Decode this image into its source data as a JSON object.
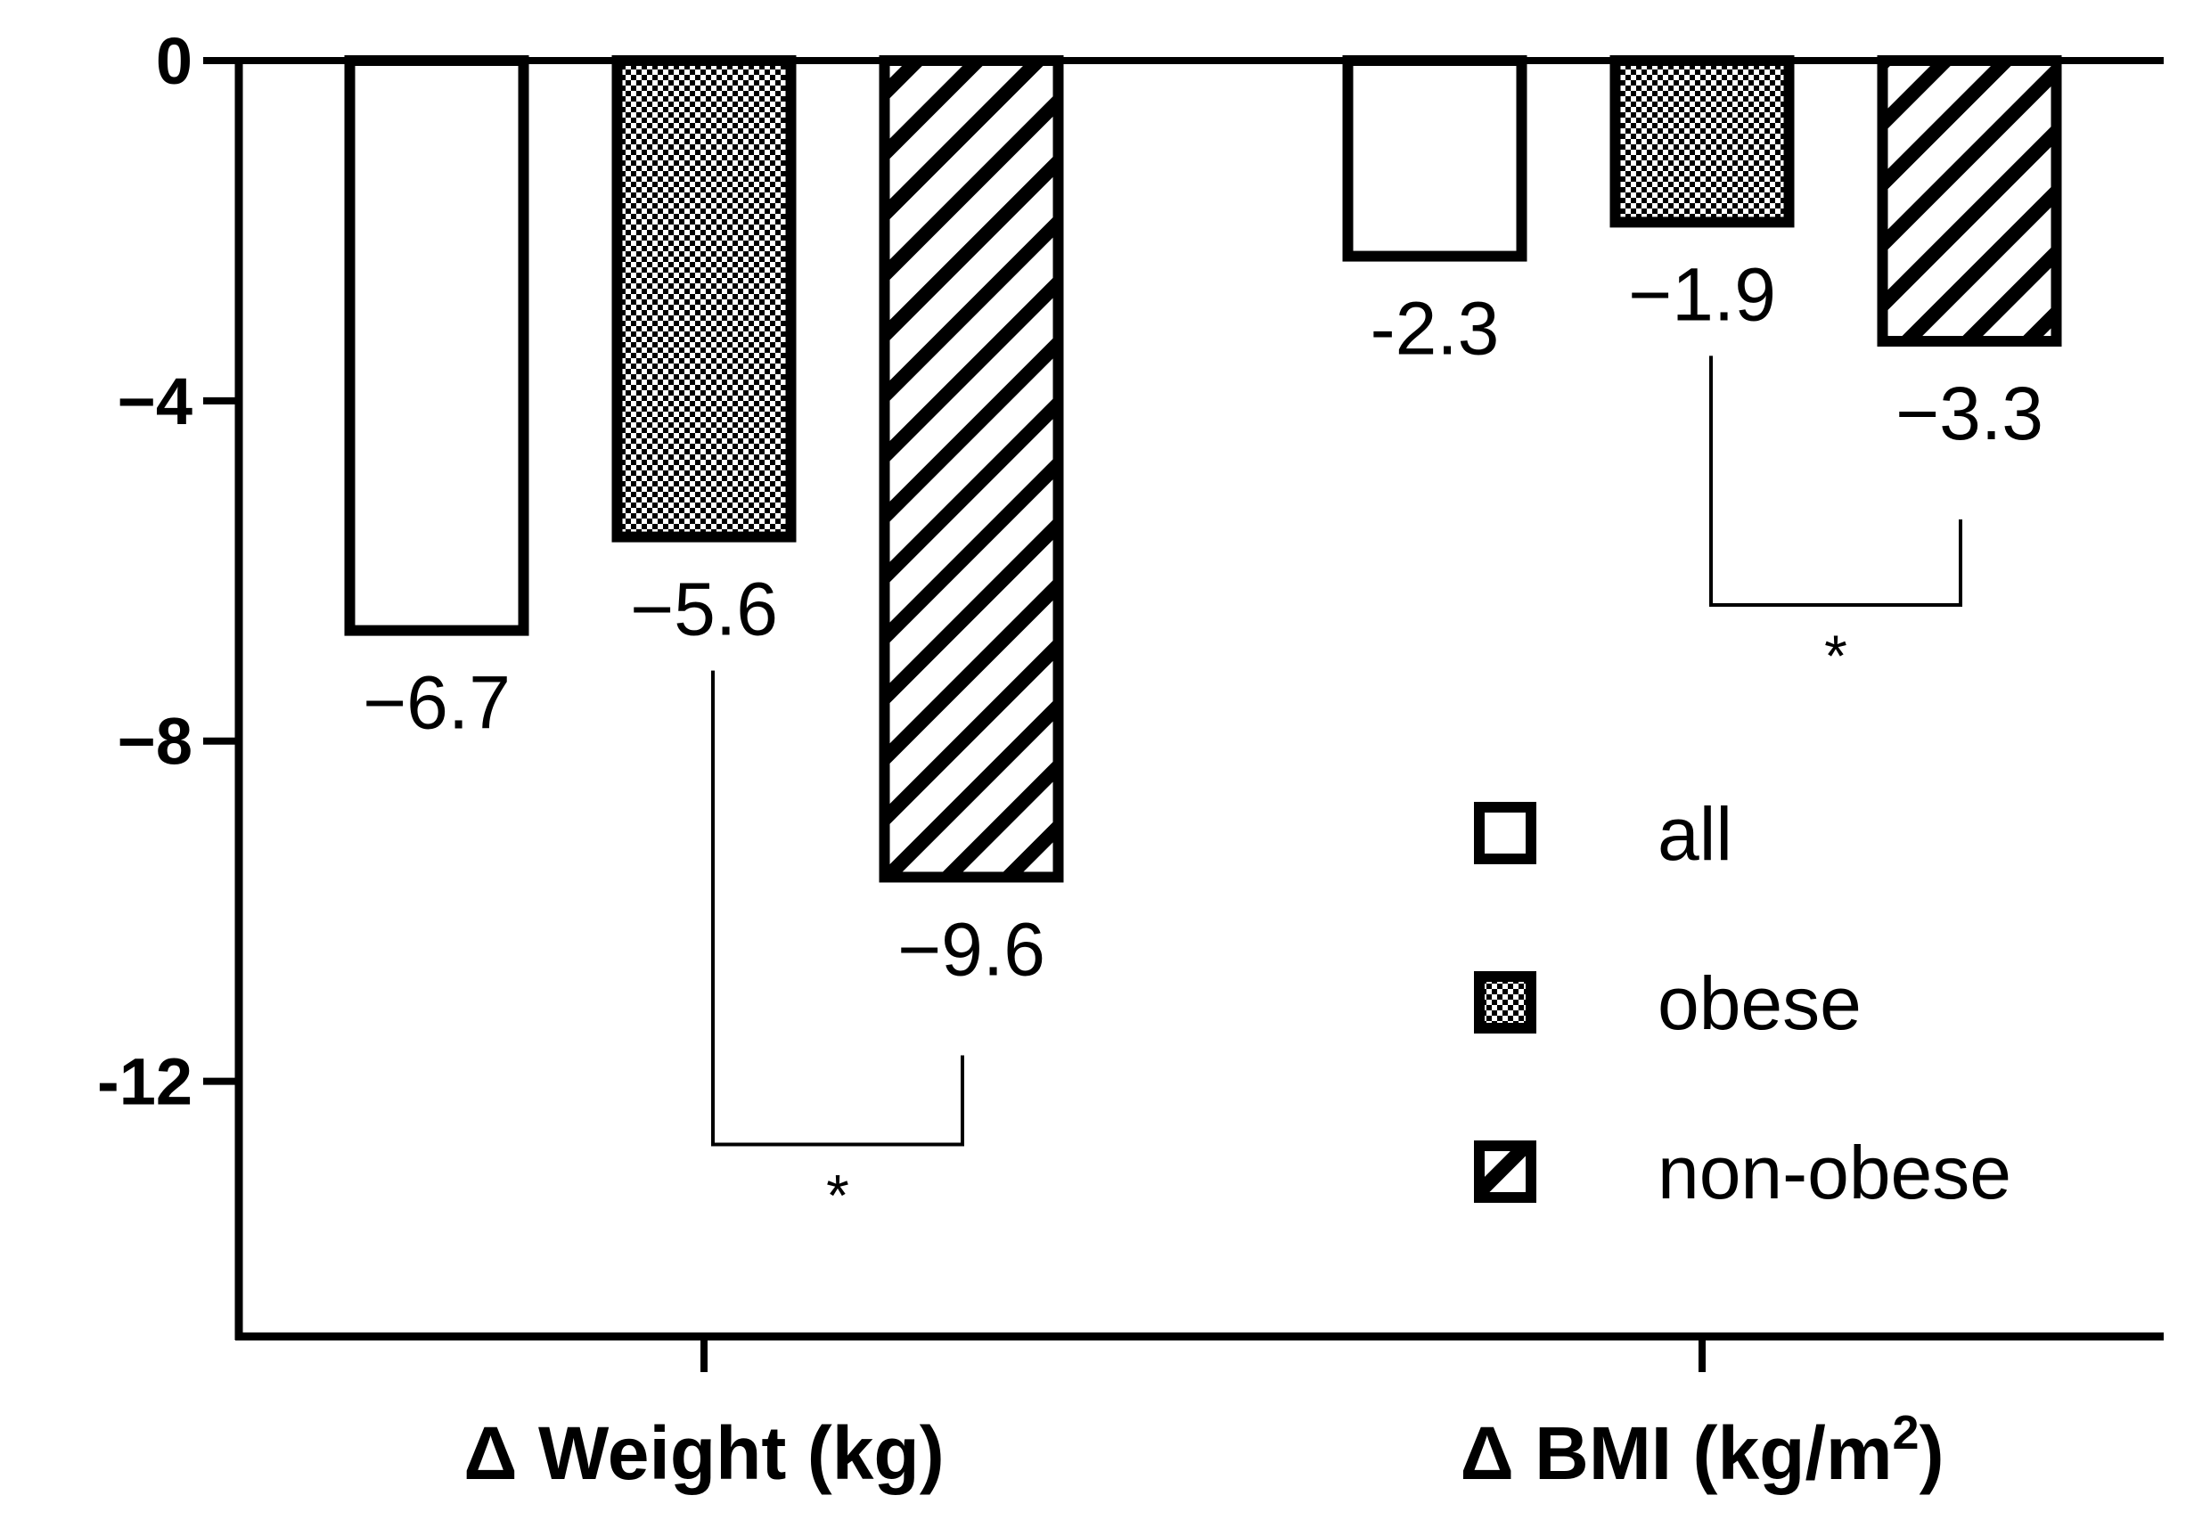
{
  "chart_data": {
    "type": "bar",
    "categories": [
      "Δ Weight (kg)",
      "Δ BMI (kg/m2)"
    ],
    "category_parts": [
      {
        "main": "Δ Weight (kg)",
        "sup": "",
        "tail": ""
      },
      {
        "main": "Δ BMI (kg/m",
        "sup": "2",
        "tail": ")"
      }
    ],
    "series": [
      {
        "name": "all",
        "pattern": "open",
        "values": [
          -6.7,
          -2.3
        ],
        "labels": [
          "−6.7",
          "-2.3"
        ]
      },
      {
        "name": "obese",
        "pattern": "checker",
        "values": [
          -5.6,
          -1.9
        ],
        "labels": [
          "−5.6",
          "−1.9"
        ]
      },
      {
        "name": "non-obese",
        "pattern": "hatch",
        "values": [
          -9.6,
          -3.3
        ],
        "labels": [
          "−9.6",
          "−3.3"
        ]
      }
    ],
    "y_ticks": [
      0,
      -4,
      -8,
      -12
    ],
    "y_tick_labels": [
      "0",
      "−4",
      "−8",
      "-12"
    ],
    "ylim": [
      -15,
      0
    ],
    "legend_position": "right",
    "significance": [
      {
        "category": 0,
        "from_series": 1,
        "to_series": 2,
        "label": "*"
      },
      {
        "category": 1,
        "from_series": 1,
        "to_series": 2,
        "label": "*"
      }
    ],
    "colors": {
      "stroke": "#000000",
      "fill": "#ffffff"
    }
  }
}
